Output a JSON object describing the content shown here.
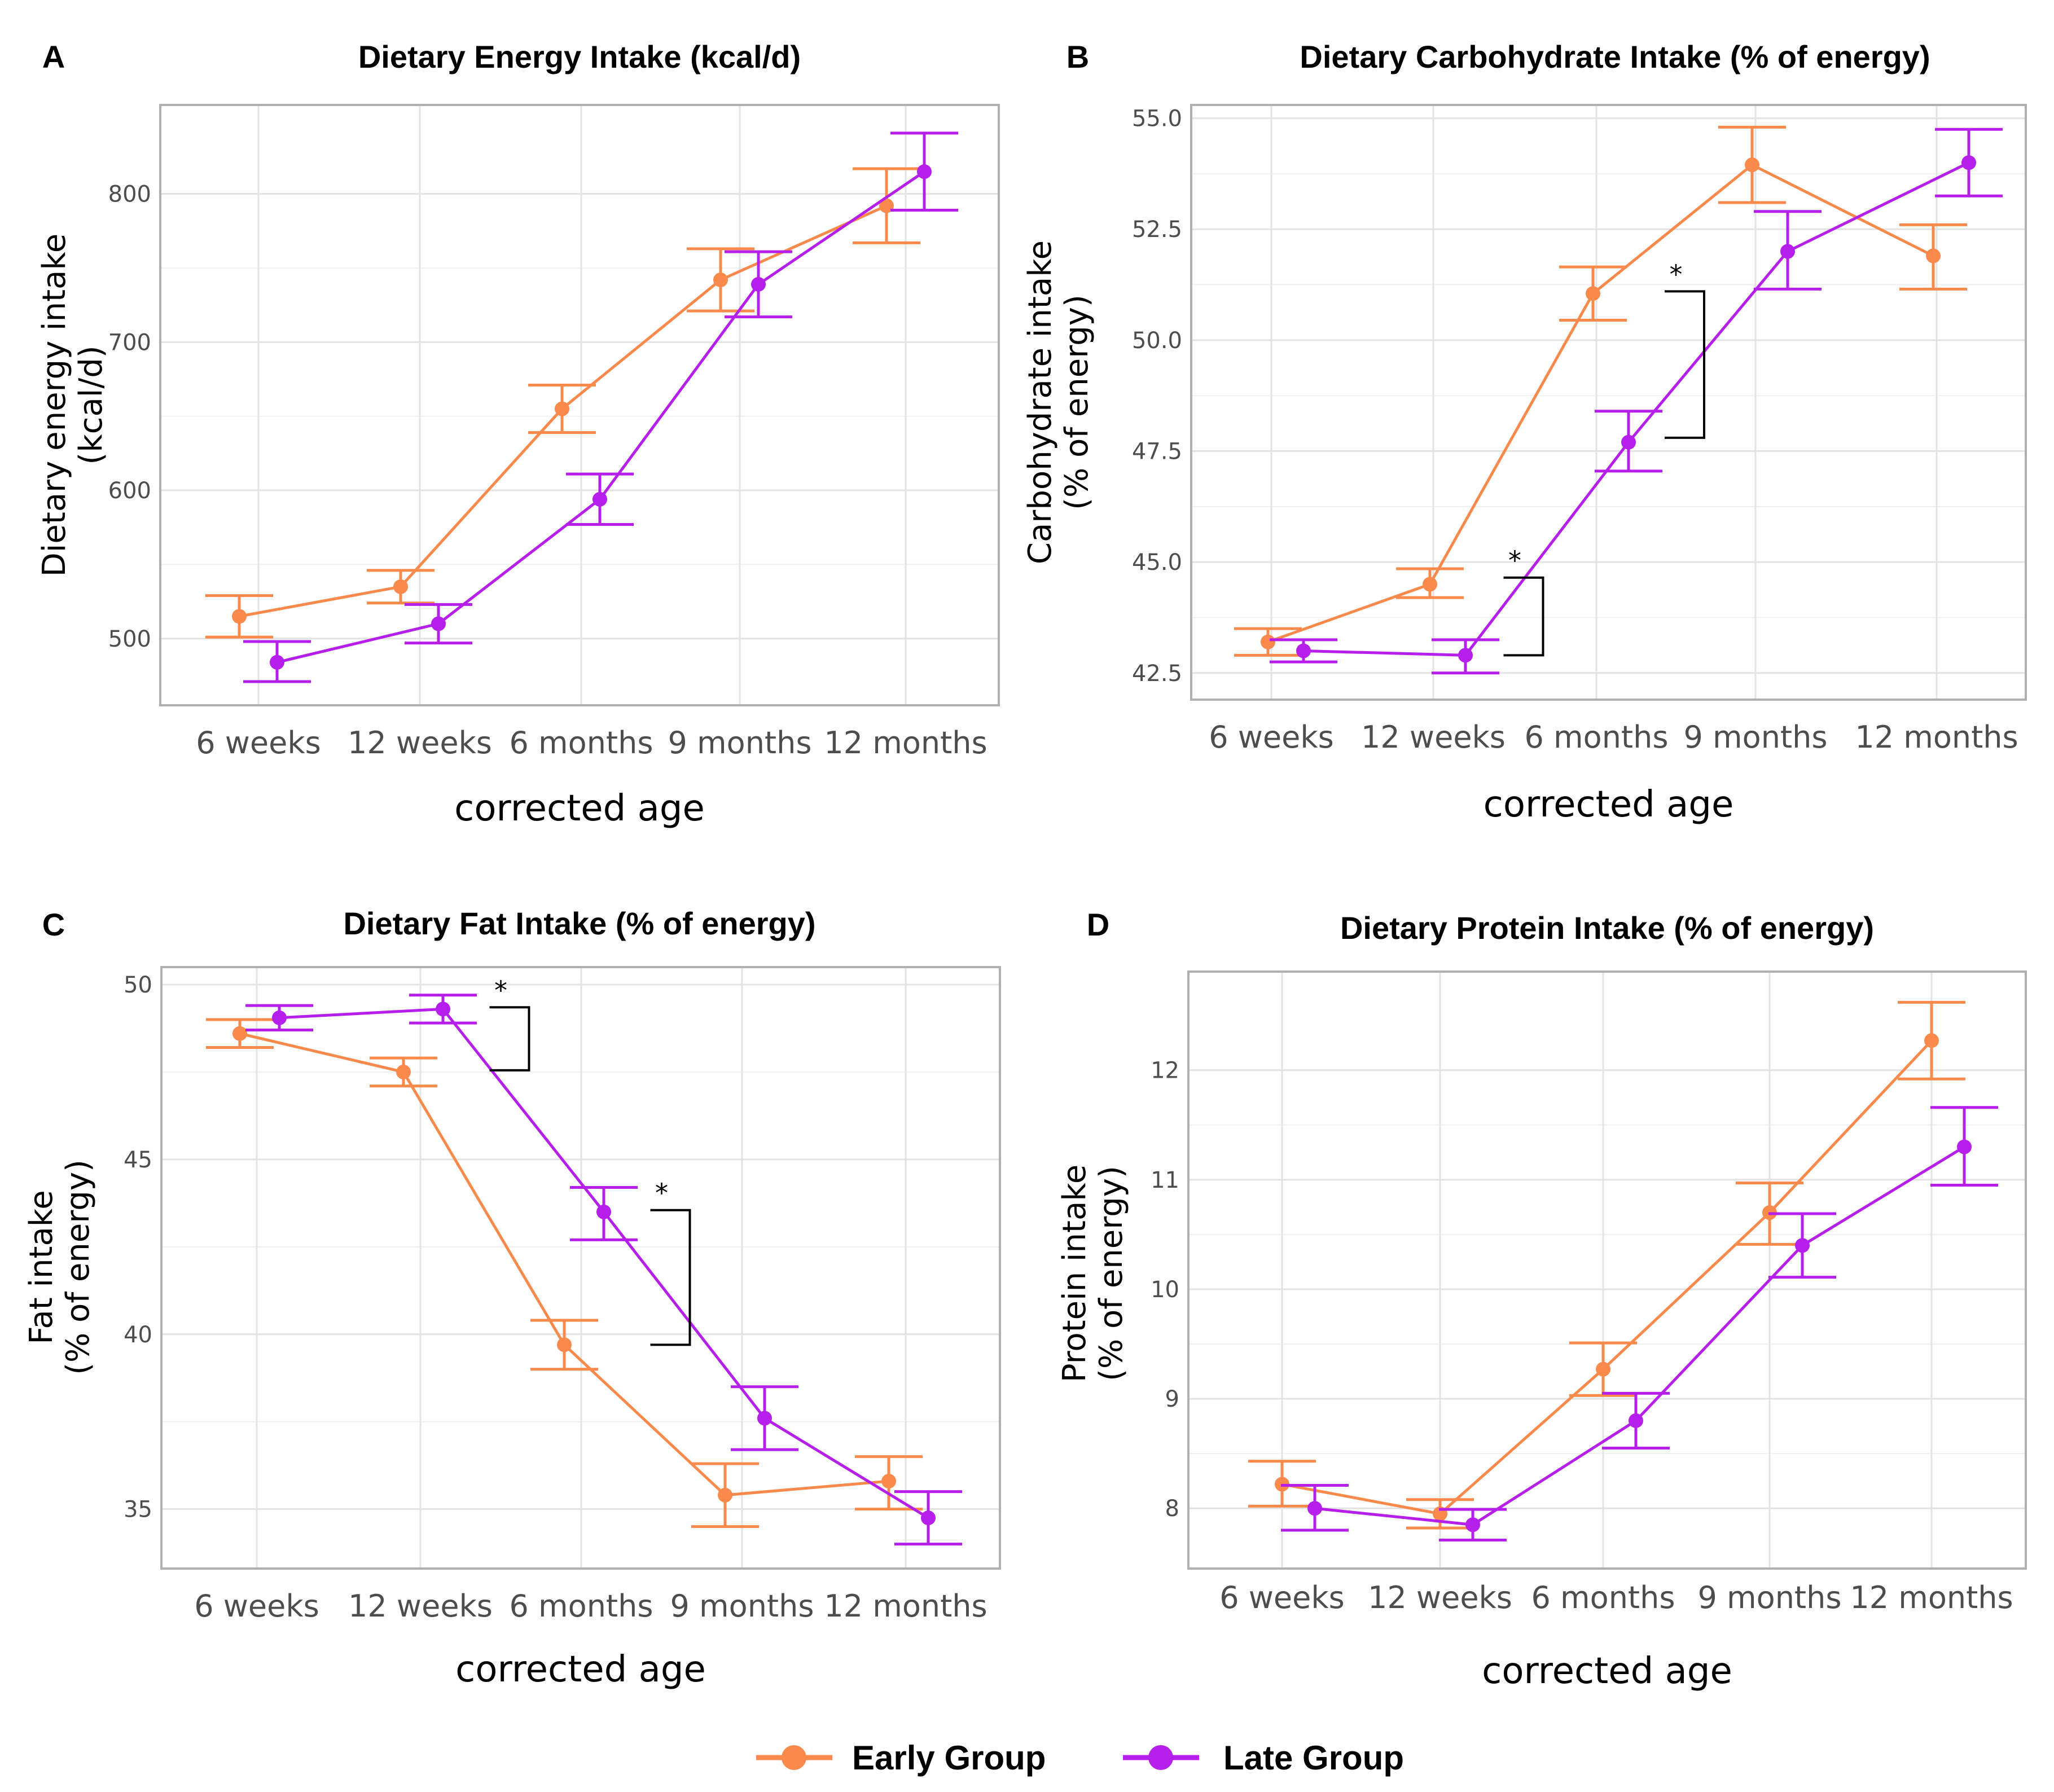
{
  "colors": {
    "early": "#F98A4B",
    "late": "#B61EEB",
    "grid": "#E3E3E3",
    "frame": "#B0B0B0"
  },
  "legend": {
    "items": [
      {
        "label": "Early Group",
        "series": "early"
      },
      {
        "label": "Late Group",
        "series": "late"
      }
    ]
  },
  "chart_data": [
    {
      "letter": "A",
      "type": "line",
      "title": "Dietary Energy Intake (kcal/d)",
      "ylabel": [
        "Dietary energy intake",
        "(kcal/d)"
      ],
      "xlabel": "corrected age",
      "categories": [
        "6 weeks",
        "12 weeks",
        "6 months",
        "9 months",
        "12 months"
      ],
      "ylim": [
        455,
        860
      ],
      "yticks": [
        500,
        600,
        700,
        800
      ],
      "ytick_labels": [
        "500",
        "600",
        "700",
        "800"
      ],
      "series": [
        {
          "name": "Early Group",
          "key": "early",
          "values": [
            515,
            535,
            655,
            742,
            792
          ],
          "lower": [
            501,
            524,
            639,
            721,
            767
          ],
          "upper": [
            529,
            546,
            671,
            763,
            817
          ]
        },
        {
          "name": "Late Group",
          "key": "late",
          "values": [
            484,
            510,
            594,
            739,
            815
          ],
          "lower": [
            471,
            497,
            577,
            717,
            789
          ],
          "upper": [
            498,
            523,
            611,
            761,
            841
          ]
        }
      ],
      "significance": []
    },
    {
      "letter": "B",
      "type": "line",
      "title": "Dietary Carbohydrate Intake (% of energy)",
      "ylabel": [
        "Carbohydrate intake",
        "(% of energy)"
      ],
      "xlabel": "corrected age",
      "categories": [
        "6 weeks",
        "12 weeks",
        "6 months",
        "9 months",
        "12 months"
      ],
      "ylim": [
        41.9,
        55.3
      ],
      "yticks": [
        42.5,
        45.0,
        47.5,
        50.0,
        52.5,
        55.0
      ],
      "ytick_labels": [
        "42.5",
        "45.0",
        "47.5",
        "50.0",
        "52.5",
        "55.0"
      ],
      "series": [
        {
          "name": "Early Group",
          "key": "early",
          "values": [
            43.2,
            44.5,
            51.05,
            53.95,
            51.9
          ],
          "lower": [
            42.9,
            44.2,
            50.45,
            53.1,
            51.15
          ],
          "upper": [
            43.5,
            44.85,
            51.65,
            54.8,
            52.6
          ]
        },
        {
          "name": "Late Group",
          "key": "late",
          "values": [
            43.0,
            42.9,
            47.7,
            52.0,
            54.0
          ],
          "lower": [
            42.75,
            42.5,
            47.05,
            51.15,
            53.25
          ],
          "upper": [
            43.25,
            43.25,
            48.4,
            52.9,
            54.75
          ]
        }
      ],
      "significance": [
        {
          "between": [
            1,
            2
          ],
          "top": 44.65,
          "bottom": 42.9,
          "label": "*"
        },
        {
          "between": [
            2,
            3
          ],
          "top": 51.1,
          "bottom": 47.8,
          "label": "*"
        }
      ]
    },
    {
      "letter": "C",
      "type": "line",
      "title": "Dietary Fat Intake (% of energy)",
      "ylabel": [
        "Fat intake",
        "(% of energy)"
      ],
      "xlabel": "corrected age",
      "categories": [
        "6 weeks",
        "12 weeks",
        "6 months",
        "9 months",
        "12 months"
      ],
      "ylim": [
        33.3,
        50.5
      ],
      "yticks": [
        35,
        40,
        45,
        50
      ],
      "ytick_labels": [
        "35",
        "40",
        "45",
        "50"
      ],
      "series": [
        {
          "name": "Early Group",
          "key": "early",
          "values": [
            48.6,
            47.5,
            39.7,
            35.4,
            35.8
          ],
          "lower": [
            48.2,
            47.1,
            39.0,
            34.5,
            35.0
          ],
          "upper": [
            49.0,
            47.9,
            40.4,
            36.3,
            36.5
          ]
        },
        {
          "name": "Late Group",
          "key": "late",
          "values": [
            49.05,
            49.3,
            43.5,
            37.6,
            34.75
          ],
          "lower": [
            48.7,
            48.9,
            42.7,
            36.7,
            34.0
          ],
          "upper": [
            49.4,
            49.7,
            44.2,
            38.5,
            35.5
          ]
        }
      ],
      "significance": [
        {
          "between": [
            1,
            2
          ],
          "top": 49.35,
          "bottom": 47.55,
          "label": "*"
        },
        {
          "between": [
            2,
            3
          ],
          "top": 43.55,
          "bottom": 39.7,
          "label": "*"
        }
      ]
    },
    {
      "letter": "D",
      "type": "line",
      "title": "Dietary Protein Intake (% of energy)",
      "ylabel": [
        "Protein intake",
        "(% of energy)"
      ],
      "xlabel": "corrected age",
      "categories": [
        "6 weeks",
        "12 weeks",
        "6 months",
        "9 months",
        "12 months"
      ],
      "ylim": [
        7.45,
        12.9
      ],
      "yticks": [
        8,
        9,
        10,
        11,
        12
      ],
      "ytick_labels": [
        "8",
        "9",
        "10",
        "11",
        "12"
      ],
      "series": [
        {
          "name": "Early Group",
          "key": "early",
          "values": [
            8.22,
            7.95,
            9.27,
            10.7,
            12.27
          ],
          "lower": [
            8.02,
            7.82,
            9.03,
            10.41,
            11.92
          ],
          "upper": [
            8.43,
            8.08,
            9.51,
            10.97,
            12.62
          ]
        },
        {
          "name": "Late Group",
          "key": "late",
          "values": [
            8.0,
            7.85,
            8.8,
            10.4,
            11.3
          ],
          "lower": [
            7.8,
            7.71,
            8.55,
            10.11,
            10.95
          ],
          "upper": [
            8.21,
            7.99,
            9.05,
            10.69,
            11.66
          ]
        }
      ],
      "significance": []
    }
  ]
}
